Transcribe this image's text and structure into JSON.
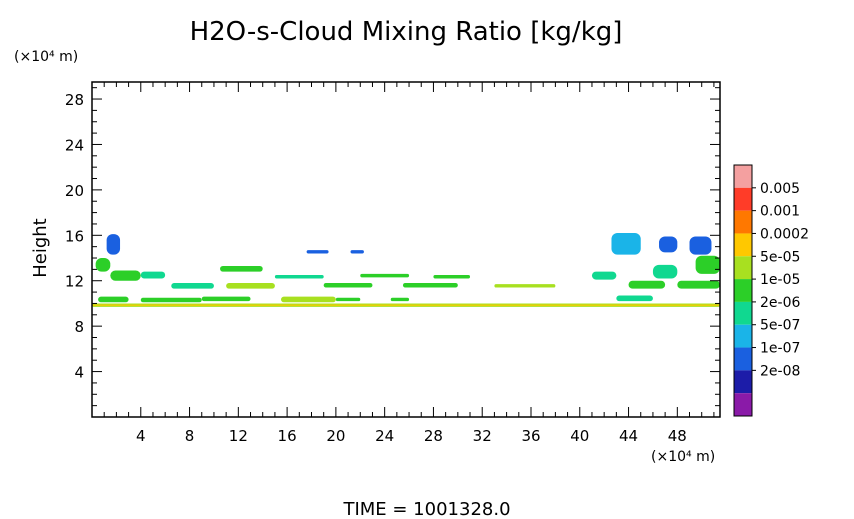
{
  "chart_data": {
    "type": "heatmap",
    "title": "H2O-s-Cloud Mixing Ratio [kg/kg]",
    "ylabel": "Height",
    "xlabel": "",
    "x_unit": "(×10⁴ m)",
    "y_unit": "(×10⁴ m)",
    "xlim": [
      0,
      51.5
    ],
    "ylim": [
      0,
      29.5
    ],
    "x_ticks": [
      4,
      8,
      12,
      16,
      20,
      24,
      28,
      32,
      36,
      40,
      44,
      48
    ],
    "y_ticks": [
      4,
      8,
      12,
      16,
      20,
      24,
      28
    ],
    "footer": "TIME  =  1001328.0",
    "colorbar": {
      "labels": [
        "0.005",
        "0.001",
        "0.0002",
        "5e-05",
        "1e-05",
        "2e-06",
        "5e-07",
        "1e-07",
        "2e-08"
      ],
      "colors": [
        "#f4a0a0",
        "#ff3c28",
        "#ff7800",
        "#ffc800",
        "#a8e020",
        "#2ccf28",
        "#10d890",
        "#1ab4e8",
        "#1a60e0",
        "#1c1ca8",
        "#8a1aa8"
      ]
    },
    "regions": [
      {
        "x": [
          0,
          51.5
        ],
        "y": [
          9.7,
          10.0
        ],
        "level": 4
      },
      {
        "x": [
          0,
          51.5
        ],
        "y": [
          9.8,
          9.9
        ],
        "level": 3
      },
      {
        "x": [
          0.5,
          3
        ],
        "y": [
          10.1,
          10.6
        ],
        "level": 5
      },
      {
        "x": [
          4,
          9
        ],
        "y": [
          10.1,
          10.5
        ],
        "level": 5
      },
      {
        "x": [
          9,
          13
        ],
        "y": [
          10.2,
          10.6
        ],
        "level": 5
      },
      {
        "x": [
          15.5,
          20
        ],
        "y": [
          10.1,
          10.6
        ],
        "level": 4
      },
      {
        "x": [
          20,
          22
        ],
        "y": [
          10.2,
          10.5
        ],
        "level": 5
      },
      {
        "x": [
          24.5,
          26
        ],
        "y": [
          10.2,
          10.5
        ],
        "level": 5
      },
      {
        "x": [
          0.3,
          1.5
        ],
        "y": [
          12.8,
          14
        ],
        "level": 5
      },
      {
        "x": [
          1.5,
          4
        ],
        "y": [
          12,
          12.9
        ],
        "level": 5
      },
      {
        "x": [
          4,
          6
        ],
        "y": [
          12.2,
          12.8
        ],
        "level": 6
      },
      {
        "x": [
          6.5,
          10
        ],
        "y": [
          11.3,
          11.8
        ],
        "level": 6
      },
      {
        "x": [
          10.5,
          14
        ],
        "y": [
          12.8,
          13.3
        ],
        "level": 5
      },
      {
        "x": [
          11,
          15
        ],
        "y": [
          11.3,
          11.8
        ],
        "level": 4
      },
      {
        "x": [
          15,
          19
        ],
        "y": [
          12.2,
          12.5
        ],
        "level": 6
      },
      {
        "x": [
          19,
          23
        ],
        "y": [
          11.4,
          11.8
        ],
        "level": 5
      },
      {
        "x": [
          22,
          26
        ],
        "y": [
          12.3,
          12.6
        ],
        "level": 5
      },
      {
        "x": [
          25.5,
          30
        ],
        "y": [
          11.4,
          11.8
        ],
        "level": 5
      },
      {
        "x": [
          28,
          31
        ],
        "y": [
          12.2,
          12.5
        ],
        "level": 5
      },
      {
        "x": [
          33,
          38
        ],
        "y": [
          11.4,
          11.7
        ],
        "level": 4
      },
      {
        "x": [
          1.2,
          2.3
        ],
        "y": [
          14.3,
          16.1
        ],
        "level": 8
      },
      {
        "x": [
          17.6,
          19.4
        ],
        "y": [
          14.4,
          14.7
        ],
        "level": 8
      },
      {
        "x": [
          21.2,
          22.3
        ],
        "y": [
          14.4,
          14.7
        ],
        "level": 8
      },
      {
        "x": [
          41,
          43
        ],
        "y": [
          12.1,
          12.8
        ],
        "level": 6
      },
      {
        "x": [
          43,
          46
        ],
        "y": [
          10.2,
          10.7
        ],
        "level": 6
      },
      {
        "x": [
          44,
          47
        ],
        "y": [
          11.3,
          12.0
        ],
        "level": 5
      },
      {
        "x": [
          46,
          48
        ],
        "y": [
          12.2,
          13.4
        ],
        "level": 6
      },
      {
        "x": [
          48,
          51.5
        ],
        "y": [
          11.3,
          12.0
        ],
        "level": 5
      },
      {
        "x": [
          49.5,
          51.5
        ],
        "y": [
          12.6,
          14.2
        ],
        "level": 5
      },
      {
        "x": [
          42.6,
          45
        ],
        "y": [
          14.3,
          16.2
        ],
        "level": 7
      },
      {
        "x": [
          46.5,
          48
        ],
        "y": [
          14.5,
          15.9
        ],
        "level": 8
      },
      {
        "x": [
          49,
          50.8
        ],
        "y": [
          14.3,
          15.9
        ],
        "level": 8
      }
    ]
  }
}
